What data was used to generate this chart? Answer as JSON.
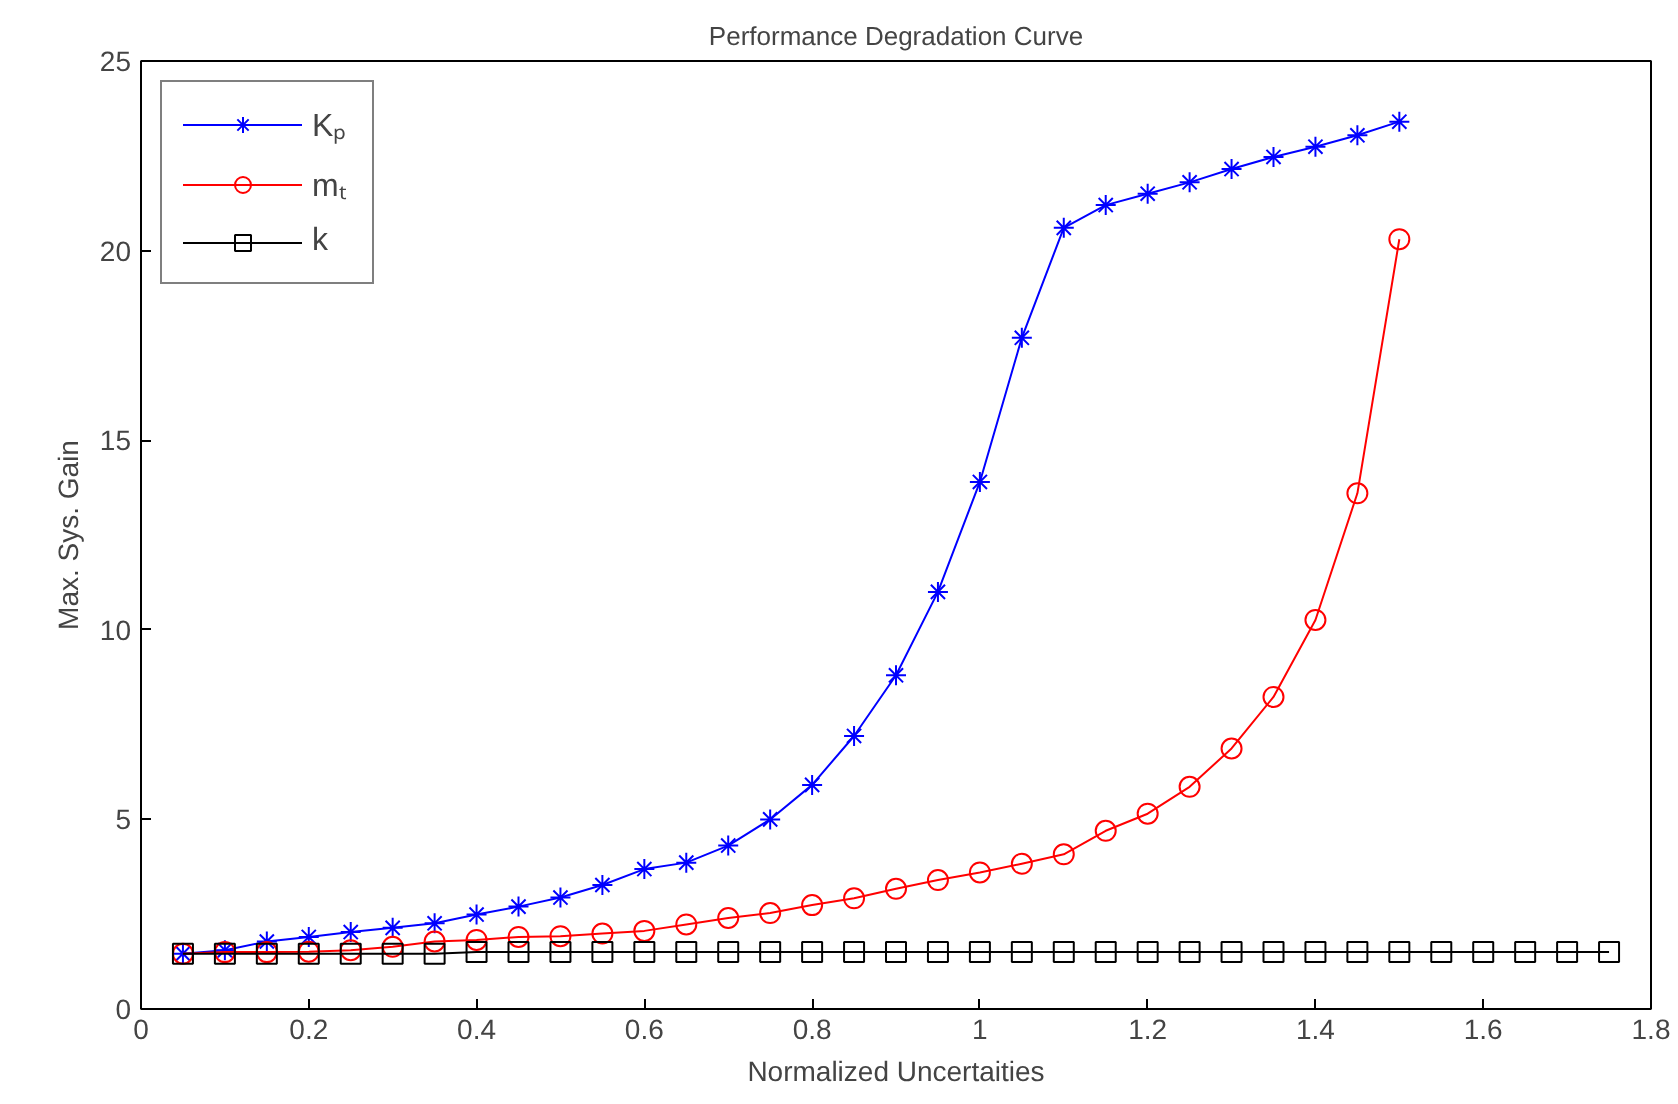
{
  "chart_data": {
    "type": "line",
    "title": "Performance Degradation Curve",
    "xlabel": "Normalized Uncertaities",
    "ylabel": "Max. Sys. Gain",
    "xlim": [
      0,
      1.8
    ],
    "ylim": [
      0,
      25
    ],
    "xticks": [
      0,
      0.2,
      0.4,
      0.6,
      0.8,
      1,
      1.2,
      1.4,
      1.6,
      1.8
    ],
    "yticks": [
      0,
      5,
      10,
      15,
      20,
      25
    ],
    "grid": false,
    "legend": "top left",
    "series": [
      {
        "name": "Kₚ",
        "color": "#0000ff",
        "marker": "cross",
        "x": [
          0.05,
          0.1,
          0.15,
          0.2,
          0.25,
          0.3,
          0.35,
          0.4,
          0.45,
          0.5,
          0.55,
          0.6,
          0.65,
          0.7,
          0.75,
          0.8,
          0.85,
          0.9,
          0.95,
          1.0,
          1.05,
          1.1,
          1.15,
          1.2,
          1.25,
          1.3,
          1.35,
          1.4,
          1.45,
          1.5
        ],
        "values": [
          1.46,
          1.55,
          1.78,
          1.9,
          2.03,
          2.14,
          2.26,
          2.49,
          2.7,
          2.94,
          3.27,
          3.69,
          3.86,
          4.31,
          5.0,
          5.91,
          7.2,
          8.8,
          11.0,
          13.9,
          17.7,
          20.6,
          21.2,
          21.5,
          21.8,
          22.15,
          22.47,
          22.74,
          23.04,
          23.4
        ]
      },
      {
        "name": "mₜ",
        "color": "#ff0000",
        "marker": "circle",
        "x": [
          0.05,
          0.1,
          0.15,
          0.2,
          0.25,
          0.3,
          0.35,
          0.4,
          0.45,
          0.5,
          0.55,
          0.6,
          0.65,
          0.7,
          0.75,
          0.8,
          0.85,
          0.9,
          0.95,
          1.0,
          1.05,
          1.1,
          1.15,
          1.2,
          1.25,
          1.3,
          1.35,
          1.4,
          1.45,
          1.5
        ],
        "values": [
          1.46,
          1.5,
          1.5,
          1.51,
          1.55,
          1.64,
          1.78,
          1.82,
          1.9,
          1.92,
          1.99,
          2.06,
          2.23,
          2.4,
          2.53,
          2.74,
          2.92,
          3.17,
          3.4,
          3.6,
          3.83,
          4.08,
          4.7,
          5.15,
          5.86,
          6.87,
          8.23,
          10.26,
          13.6,
          20.3
        ]
      },
      {
        "name": "k",
        "color": "#000000",
        "marker": "square",
        "x": [
          0.05,
          0.1,
          0.15,
          0.2,
          0.25,
          0.3,
          0.35,
          0.4,
          0.45,
          0.5,
          0.55,
          0.6,
          0.65,
          0.7,
          0.75,
          0.8,
          0.85,
          0.9,
          0.95,
          1.0,
          1.05,
          1.1,
          1.15,
          1.2,
          1.25,
          1.3,
          1.35,
          1.4,
          1.45,
          1.5,
          1.55,
          1.6,
          1.65,
          1.7,
          1.75
        ],
        "values": [
          1.46,
          1.46,
          1.46,
          1.46,
          1.46,
          1.46,
          1.46,
          1.5,
          1.5,
          1.5,
          1.5,
          1.5,
          1.5,
          1.5,
          1.5,
          1.5,
          1.5,
          1.5,
          1.5,
          1.5,
          1.5,
          1.5,
          1.5,
          1.5,
          1.5,
          1.5,
          1.5,
          1.5,
          1.5,
          1.5,
          1.5,
          1.5,
          1.5,
          1.5,
          1.5
        ]
      }
    ]
  }
}
